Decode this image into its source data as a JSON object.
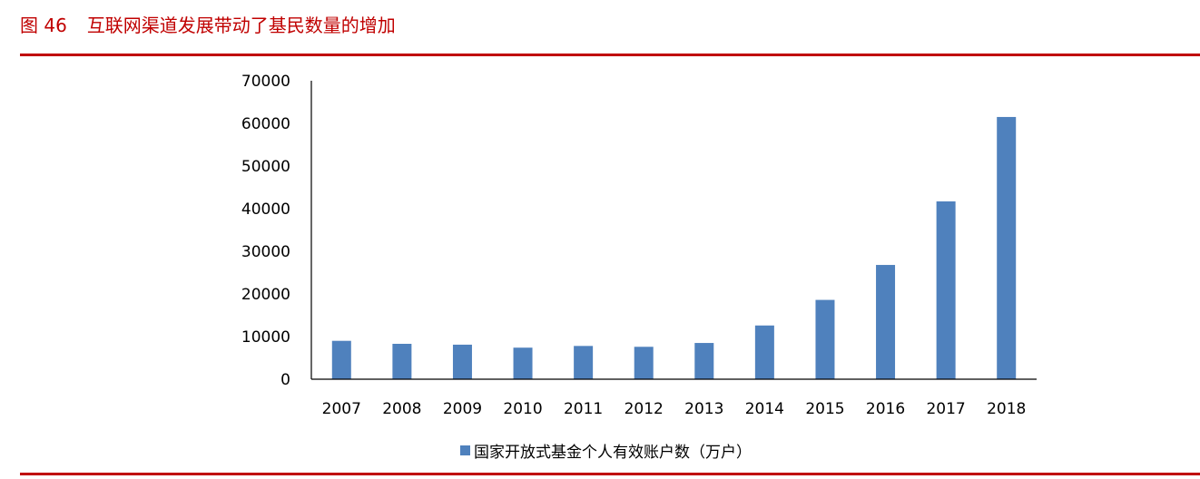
{
  "figure": {
    "number": "图 46",
    "title": "互联网渠道发展带动了基民数量的增加"
  },
  "colors": {
    "accent": "#c00000",
    "bar": "#4f81bd",
    "axis": "#000000"
  },
  "chart_data": {
    "type": "bar",
    "categories": [
      "2007",
      "2008",
      "2009",
      "2010",
      "2011",
      "2012",
      "2013",
      "2014",
      "2015",
      "2016",
      "2017",
      "2018"
    ],
    "series": [
      {
        "name": "国家开放式基金个人有效账户数（万户）",
        "values": [
          9000,
          8300,
          8100,
          7400,
          7800,
          7600,
          8500,
          12600,
          18600,
          26800,
          41700,
          61500
        ]
      }
    ],
    "ylim": [
      0,
      70000
    ],
    "yticks": [
      "0",
      "10000",
      "20000",
      "30000",
      "40000",
      "50000",
      "60000",
      "70000"
    ],
    "grid": false,
    "legend_position": "bottom"
  }
}
